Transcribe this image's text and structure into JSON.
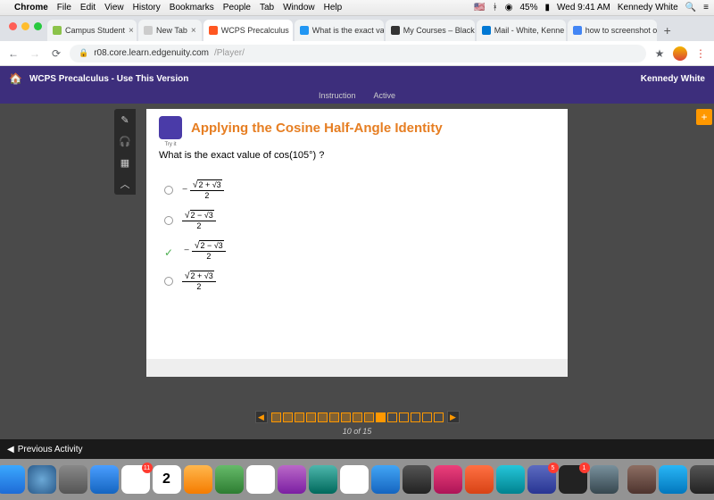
{
  "menubar": {
    "app": "Chrome",
    "items": [
      "File",
      "Edit",
      "View",
      "History",
      "Bookmarks",
      "People",
      "Tab",
      "Window",
      "Help"
    ],
    "battery": "45%",
    "time": "Wed 9:41 AM",
    "user": "Kennedy White"
  },
  "tabs": [
    {
      "label": "Campus Student",
      "fav": "#8bc34a"
    },
    {
      "label": "New Tab",
      "fav": "#ccc"
    },
    {
      "label": "WCPS Precalculus",
      "fav": "#ff5722",
      "active": true
    },
    {
      "label": "What is the exact va",
      "fav": "#2196f3"
    },
    {
      "label": "My Courses – Black",
      "fav": "#333"
    },
    {
      "label": "Mail - White, Kenne",
      "fav": "#0078d4"
    },
    {
      "label": "how to screenshot o",
      "fav": "#4285f4"
    }
  ],
  "url": {
    "host": "r08.core.learn.edgenuity.com",
    "path": "/Player/"
  },
  "edg": {
    "title": "WCPS Precalculus - Use This Version",
    "user": "Kennedy White",
    "subnav": [
      "Instruction",
      "Active"
    ]
  },
  "lesson": {
    "title": "Applying the Cosine Half-Angle Identity",
    "question": "What is the exact value of cos(105°) ?",
    "options": [
      {
        "neg": true,
        "inner_neg": false,
        "plus": true,
        "correct": false
      },
      {
        "neg": false,
        "inner_neg": true,
        "plus": false,
        "correct": false
      },
      {
        "neg": true,
        "inner_neg": true,
        "plus": false,
        "correct": true
      },
      {
        "neg": false,
        "inner_neg": false,
        "plus": true,
        "correct": false
      }
    ]
  },
  "pager": {
    "current": 10,
    "total": 15,
    "label": "10 of 15"
  },
  "bottom": {
    "prev": "Previous Activity"
  },
  "dock": [
    {
      "c": "linear-gradient(#3ba8ff,#1e6bd6)"
    },
    {
      "c": "radial-gradient(#6ba8d6,#2a5a8a)"
    },
    {
      "c": "linear-gradient(#888,#555)"
    },
    {
      "c": "linear-gradient(#4a9eff,#1565c0)"
    },
    {
      "c": "#fff",
      "badge": "11"
    },
    {
      "c": "#fff",
      "text": "2"
    },
    {
      "c": "linear-gradient(#ffb74d,#f57c00)"
    },
    {
      "c": "linear-gradient(#66bb6a,#2e7d32)"
    },
    {
      "c": "#fff"
    },
    {
      "c": "linear-gradient(#ba68c8,#7b1fa2)"
    },
    {
      "c": "linear-gradient(#4db6ac,#00695c)"
    },
    {
      "c": "#fff"
    },
    {
      "c": "linear-gradient(#42a5f5,#1565c0)"
    },
    {
      "c": "linear-gradient(#555,#222)"
    },
    {
      "c": "linear-gradient(#ec407a,#ad1457)"
    },
    {
      "c": "linear-gradient(#ff7043,#d84315)"
    },
    {
      "c": "linear-gradient(#26c6da,#00838f)"
    },
    {
      "c": "linear-gradient(#5c6bc0,#283593)",
      "badge": "5"
    },
    {
      "c": "#222",
      "badge": "1"
    },
    {
      "c": "linear-gradient(#78909c,#37474f)"
    },
    {
      "c": "linear-gradient(#8d6e63,#4e342e)"
    },
    {
      "c": "linear-gradient(#29b6f6,#0277bd)"
    },
    {
      "c": "linear-gradient(#555,#222)"
    }
  ]
}
